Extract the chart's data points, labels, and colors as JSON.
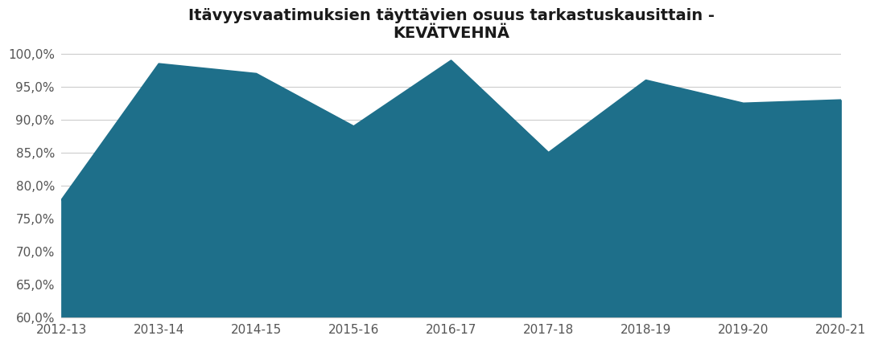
{
  "categories": [
    "2012-13",
    "2013-14",
    "2014-15",
    "2015-16",
    "2016-17",
    "2017-18",
    "2018-19",
    "2019-20",
    "2020-21"
  ],
  "values": [
    0.778,
    0.985,
    0.97,
    0.89,
    0.99,
    0.85,
    0.96,
    0.925,
    0.93
  ],
  "fill_color": "#1e6f8a",
  "line_color": "#1e6f8a",
  "title_line1": "Itävyysvaatimuksien täyttävien osuus tarkastuskausittain -",
  "title_line2": "KEVÄTVEHNÄ",
  "ylim_min": 0.6,
  "ylim_max": 1.008,
  "yticks": [
    0.6,
    0.65,
    0.7,
    0.75,
    0.8,
    0.85,
    0.9,
    0.95,
    1.0
  ],
  "ytick_labels": [
    "60,0%",
    "65,0%",
    "70,0%",
    "75,0%",
    "80,0%",
    "85,0%",
    "90,0%",
    "95,0%",
    "100,0%"
  ],
  "background_color": "#ffffff",
  "grid_color": "#cccccc",
  "title_fontsize": 14,
  "tick_fontsize": 11
}
